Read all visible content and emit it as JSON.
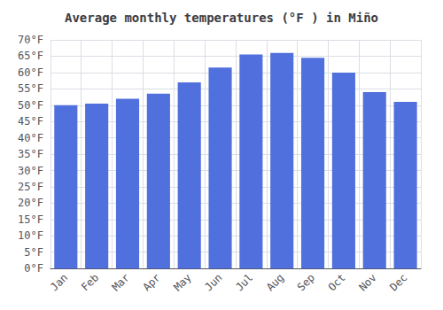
{
  "chart_data": {
    "type": "bar",
    "title": "Average monthly temperatures (°F ) in Miño",
    "categories": [
      "Jan",
      "Feb",
      "Mar",
      "Apr",
      "May",
      "Jun",
      "Jul",
      "Aug",
      "Sep",
      "Oct",
      "Nov",
      "Dec"
    ],
    "values": [
      50,
      50.5,
      52,
      53.5,
      57,
      61.5,
      65.5,
      66,
      64.5,
      60,
      54,
      51
    ],
    "ylim": [
      0,
      70
    ],
    "yticks": [
      {
        "value": 0,
        "label": "0°F"
      },
      {
        "value": 5,
        "label": "5°F"
      },
      {
        "value": 10,
        "label": "10°F"
      },
      {
        "value": 15,
        "label": "15°F"
      },
      {
        "value": 20,
        "label": "20°F"
      },
      {
        "value": 25,
        "label": "25°F"
      },
      {
        "value": 30,
        "label": "30°F"
      },
      {
        "value": 35,
        "label": "35°F"
      },
      {
        "value": 40,
        "label": "40°F"
      },
      {
        "value": 45,
        "label": "45°F"
      },
      {
        "value": 50,
        "label": "50°F"
      },
      {
        "value": 55,
        "label": "55°F"
      },
      {
        "value": 60,
        "label": "60°F"
      },
      {
        "value": 65,
        "label": "65°F"
      },
      {
        "value": 70,
        "label": "70°F"
      }
    ],
    "grid": true
  }
}
